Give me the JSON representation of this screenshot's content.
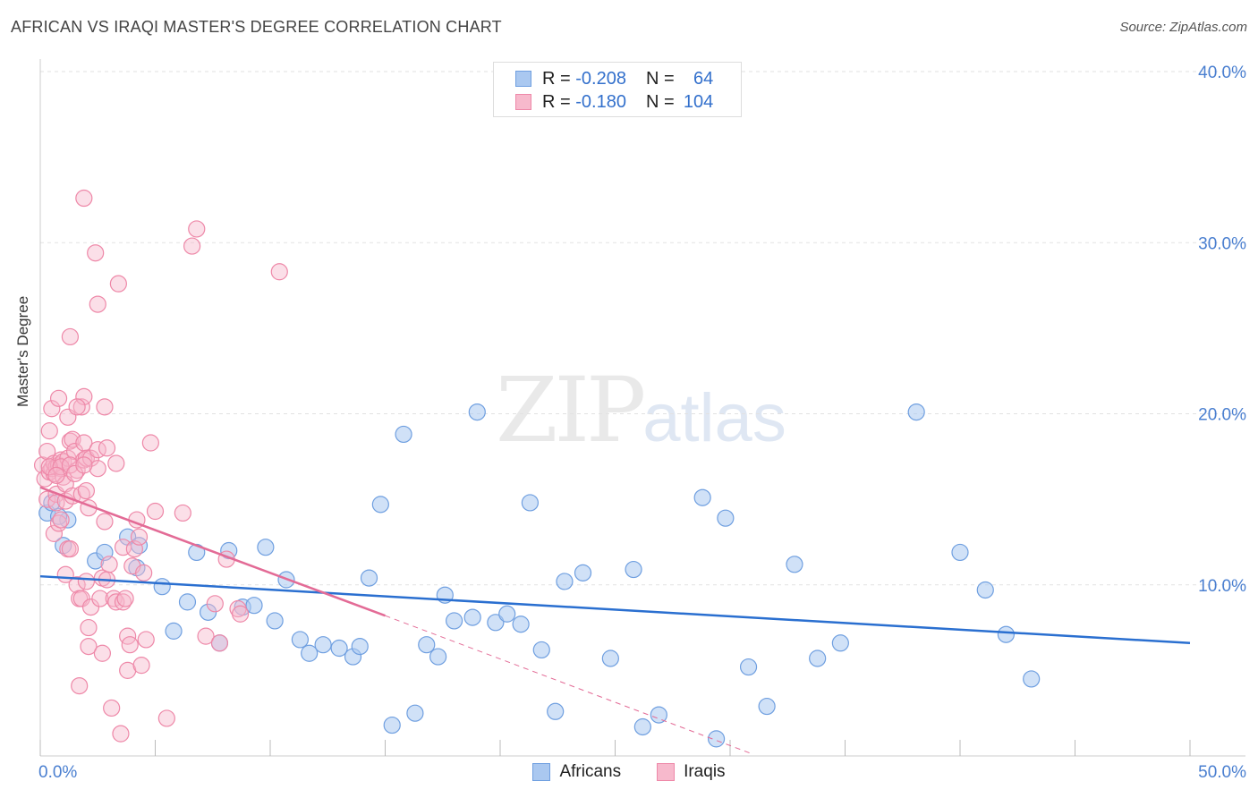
{
  "title": "AFRICAN VS IRAQI MASTER'S DEGREE CORRELATION CHART",
  "source": "Source: ZipAtlas.com",
  "watermark": {
    "zip": "ZIP",
    "atlas": "atlas"
  },
  "colors": {
    "africans_fill": "#aac8f0",
    "africans_stroke": "#6f9fe0",
    "africans_line": "#2a6fd0",
    "iraqis_fill": "#f7b9cc",
    "iraqis_stroke": "#ee88a8",
    "iraqis_line": "#e36b96",
    "axis_text": "#4a7fd0"
  },
  "legend": {
    "rows": [
      {
        "r_label": "R =",
        "r_value": "-0.208",
        "n_label": "N =",
        "n_value": "64"
      },
      {
        "r_label": "R =",
        "r_value": "-0.180",
        "n_label": "N =",
        "n_value": "104"
      }
    ]
  },
  "chart_data": {
    "type": "scatter",
    "ylabel": "Master's Degree",
    "x_ticks": [
      "0.0%",
      "50.0%"
    ],
    "y_ticks": [
      "10.0%",
      "20.0%",
      "30.0%",
      "40.0%"
    ],
    "xlim": [
      0,
      50
    ],
    "ylim": [
      0,
      40
    ],
    "grid": true,
    "series": [
      {
        "name": "Africans",
        "trend": {
          "x": [
            0,
            50
          ],
          "y": [
            10.5,
            6.6
          ]
        },
        "points": [
          [
            0.3,
            14.2
          ],
          [
            0.5,
            14.8
          ],
          [
            1.0,
            12.3
          ],
          [
            1.2,
            13.8
          ],
          [
            2.4,
            11.4
          ],
          [
            2.8,
            11.9
          ],
          [
            3.8,
            12.8
          ],
          [
            4.3,
            12.3
          ],
          [
            4.2,
            11.0
          ],
          [
            5.3,
            9.9
          ],
          [
            5.8,
            7.3
          ],
          [
            6.4,
            9.0
          ],
          [
            6.8,
            11.9
          ],
          [
            7.3,
            8.4
          ],
          [
            7.8,
            6.6
          ],
          [
            8.2,
            12.0
          ],
          [
            8.8,
            8.7
          ],
          [
            9.3,
            8.8
          ],
          [
            9.8,
            12.2
          ],
          [
            10.2,
            7.9
          ],
          [
            10.7,
            10.3
          ],
          [
            11.3,
            6.8
          ],
          [
            11.7,
            6.0
          ],
          [
            12.3,
            6.5
          ],
          [
            13.0,
            6.3
          ],
          [
            13.6,
            5.8
          ],
          [
            13.9,
            6.4
          ],
          [
            14.3,
            10.4
          ],
          [
            14.8,
            14.7
          ],
          [
            15.3,
            1.8
          ],
          [
            15.8,
            18.8
          ],
          [
            16.3,
            2.5
          ],
          [
            16.8,
            6.5
          ],
          [
            17.3,
            5.8
          ],
          [
            17.6,
            9.4
          ],
          [
            18.0,
            7.9
          ],
          [
            18.8,
            8.1
          ],
          [
            19.0,
            20.1
          ],
          [
            19.8,
            7.8
          ],
          [
            20.3,
            8.3
          ],
          [
            20.9,
            7.7
          ],
          [
            21.3,
            14.8
          ],
          [
            21.8,
            6.2
          ],
          [
            22.4,
            2.6
          ],
          [
            22.8,
            10.2
          ],
          [
            23.6,
            10.7
          ],
          [
            24.8,
            5.7
          ],
          [
            25.8,
            10.9
          ],
          [
            26.2,
            1.7
          ],
          [
            26.9,
            2.4
          ],
          [
            28.8,
            15.1
          ],
          [
            29.4,
            1.0
          ],
          [
            29.8,
            13.9
          ],
          [
            30.8,
            5.2
          ],
          [
            31.6,
            2.9
          ],
          [
            32.8,
            11.2
          ],
          [
            33.8,
            5.7
          ],
          [
            34.8,
            6.6
          ],
          [
            38.1,
            20.1
          ],
          [
            40.0,
            11.9
          ],
          [
            41.1,
            9.7
          ],
          [
            42.0,
            7.1
          ],
          [
            43.1,
            4.5
          ],
          [
            0.8,
            14.0
          ]
        ]
      },
      {
        "name": "Iraqis",
        "trend": {
          "x": [
            0,
            15
          ],
          "y": [
            15.7,
            8.2
          ]
        },
        "trend_ext": {
          "x": [
            15,
            31
          ],
          "y": [
            8.2,
            0.1
          ]
        },
        "points": [
          [
            0.1,
            17.0
          ],
          [
            0.2,
            16.2
          ],
          [
            0.3,
            15.0
          ],
          [
            0.3,
            17.8
          ],
          [
            0.4,
            16.6
          ],
          [
            0.4,
            19.0
          ],
          [
            0.5,
            16.8
          ],
          [
            0.5,
            20.3
          ],
          [
            0.6,
            16.5
          ],
          [
            0.6,
            17.1
          ],
          [
            0.6,
            13.0
          ],
          [
            0.7,
            15.3
          ],
          [
            0.7,
            14.8
          ],
          [
            0.7,
            16.9
          ],
          [
            0.8,
            13.6
          ],
          [
            0.8,
            17.0
          ],
          [
            0.8,
            20.9
          ],
          [
            0.9,
            16.8
          ],
          [
            0.9,
            17.3
          ],
          [
            0.9,
            13.8
          ],
          [
            1.0,
            16.3
          ],
          [
            1.0,
            17.2
          ],
          [
            1.1,
            15.9
          ],
          [
            1.1,
            14.9
          ],
          [
            1.1,
            10.6
          ],
          [
            1.2,
            19.8
          ],
          [
            1.2,
            17.4
          ],
          [
            1.2,
            12.1
          ],
          [
            1.3,
            18.4
          ],
          [
            1.3,
            12.1
          ],
          [
            1.4,
            15.2
          ],
          [
            1.4,
            18.5
          ],
          [
            1.5,
            17.8
          ],
          [
            1.6,
            16.7
          ],
          [
            1.6,
            10.0
          ],
          [
            1.7,
            9.2
          ],
          [
            1.7,
            4.1
          ],
          [
            1.8,
            15.3
          ],
          [
            1.8,
            20.4
          ],
          [
            1.8,
            9.2
          ],
          [
            1.9,
            17.3
          ],
          [
            1.9,
            32.6
          ],
          [
            1.9,
            18.3
          ],
          [
            1.9,
            21.0
          ],
          [
            2.0,
            10.2
          ],
          [
            2.0,
            17.4
          ],
          [
            2.0,
            15.5
          ],
          [
            2.1,
            14.5
          ],
          [
            2.1,
            7.5
          ],
          [
            2.1,
            6.4
          ],
          [
            2.2,
            8.7
          ],
          [
            2.2,
            17.4
          ],
          [
            2.4,
            29.4
          ],
          [
            2.5,
            17.9
          ],
          [
            2.5,
            16.8
          ],
          [
            2.5,
            26.4
          ],
          [
            2.6,
            9.2
          ],
          [
            2.7,
            10.4
          ],
          [
            2.7,
            6.0
          ],
          [
            2.8,
            13.7
          ],
          [
            2.8,
            20.4
          ],
          [
            2.9,
            18.0
          ],
          [
            2.9,
            10.3
          ],
          [
            3.0,
            11.2
          ],
          [
            3.1,
            2.8
          ],
          [
            3.2,
            9.2
          ],
          [
            3.3,
            9.0
          ],
          [
            3.3,
            17.1
          ],
          [
            3.4,
            27.6
          ],
          [
            3.5,
            1.3
          ],
          [
            3.6,
            12.2
          ],
          [
            3.6,
            9.0
          ],
          [
            3.7,
            9.2
          ],
          [
            3.8,
            5.0
          ],
          [
            3.8,
            7.0
          ],
          [
            3.9,
            6.5
          ],
          [
            4.0,
            11.1
          ],
          [
            4.1,
            12.1
          ],
          [
            4.2,
            13.8
          ],
          [
            4.3,
            12.8
          ],
          [
            4.4,
            5.3
          ],
          [
            4.5,
            10.7
          ],
          [
            4.6,
            6.8
          ],
          [
            4.8,
            18.3
          ],
          [
            5.0,
            14.3
          ],
          [
            5.5,
            2.2
          ],
          [
            6.2,
            14.2
          ],
          [
            6.6,
            29.8
          ],
          [
            6.8,
            30.8
          ],
          [
            7.2,
            7.0
          ],
          [
            7.6,
            8.9
          ],
          [
            7.8,
            6.6
          ],
          [
            8.1,
            11.5
          ],
          [
            8.6,
            8.6
          ],
          [
            8.7,
            8.3
          ],
          [
            10.4,
            28.3
          ],
          [
            0.4,
            16.9
          ],
          [
            0.9,
            16.9
          ],
          [
            1.3,
            17.0
          ],
          [
            1.5,
            16.5
          ],
          [
            1.9,
            17.0
          ],
          [
            0.7,
            16.4
          ],
          [
            1.3,
            24.5
          ],
          [
            1.6,
            20.4
          ]
        ]
      }
    ]
  },
  "bottom_legend": [
    {
      "label": "Africans"
    },
    {
      "label": "Iraqis"
    }
  ]
}
